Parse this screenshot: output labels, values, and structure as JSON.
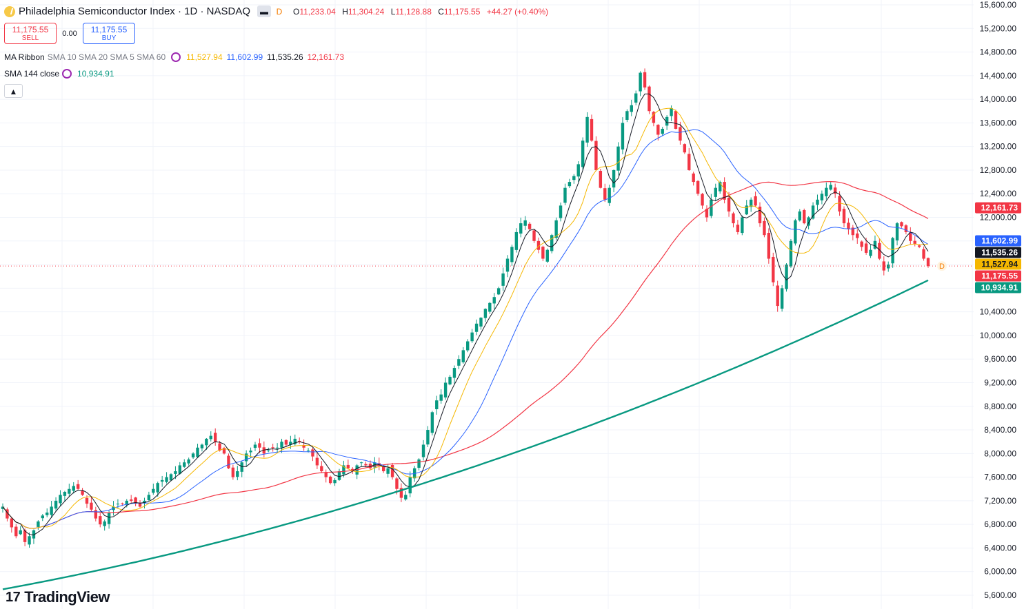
{
  "header": {
    "title": "Philadelphia Semiconductor Index · 1D · NASDAQ",
    "interval_button": "D",
    "ohlc": [
      {
        "k": "O",
        "v": "11,233.04"
      },
      {
        "k": "H",
        "v": "11,304.24"
      },
      {
        "k": "L",
        "v": "11,128.88"
      },
      {
        "k": "C",
        "v": "11,175.55"
      }
    ],
    "change": "+44.27 (+0.40%)"
  },
  "trade": {
    "sell_price": "11,175.55",
    "sell_label": "SELL",
    "spread": "0.00",
    "buy_price": "11,175.55",
    "buy_label": "BUY"
  },
  "indicators": {
    "ribbon": {
      "name": "MA Ribbon",
      "params": "SMA 10 SMA 20 SMA 5 SMA 60",
      "values": [
        {
          "v": "11,527.94",
          "color": "#f5b700"
        },
        {
          "v": "11,602.99",
          "color": "#2962ff"
        },
        {
          "v": "11,535.26",
          "color": "#131722"
        },
        {
          "v": "12,161.73",
          "color": "#f23645"
        }
      ]
    },
    "sma144": {
      "name": "SMA 144 close",
      "value": "10,934.91",
      "color": "#089981"
    }
  },
  "collapse_icon": "chevron-up-icon",
  "logo": {
    "text": "TradingView",
    "icon": "tradingview-logo-icon"
  },
  "chart_data": {
    "type": "candlestick",
    "title": "Philadelphia Semiconductor Index · 1D · NASDAQ",
    "ylim": [
      5400,
      15700
    ],
    "y_ticks": [
      5600,
      6000,
      6400,
      6800,
      7200,
      7600,
      8000,
      8400,
      8800,
      9200,
      9600,
      10000,
      10400,
      10800,
      11200,
      11600,
      12000,
      12400,
      12800,
      13200,
      13600,
      14000,
      14400,
      14800,
      15200,
      15600
    ],
    "y_tick_labels": [
      "5,600.00",
      "6,000.00",
      "6,400.00",
      "6,800.00",
      "7,200.00",
      "7,600.00",
      "8,000.00",
      "8,400.00",
      "8,800.00",
      "9,200.00",
      "9,600.00",
      "10,000.00",
      "10,400.00",
      "10,800.00",
      "11,200.00",
      "11,600.00",
      "12,000.00",
      "12,400.00",
      "12,800.00",
      "13,200.00",
      "13,600.00",
      "14,000.00",
      "14,400.00",
      "14,800.00",
      "15,200.00",
      "15,600.00"
    ],
    "colors": {
      "up": "#089981",
      "down": "#f23645",
      "sma5": "#131722",
      "sma10": "#f5b700",
      "sma20": "#2962ff",
      "sma60": "#f23645",
      "sma144": "#089981"
    },
    "closes": [
      7100,
      6900,
      6750,
      6600,
      6700,
      6500,
      6600,
      6700,
      6850,
      6950,
      7000,
      7100,
      7200,
      7300,
      7350,
      7400,
      7450,
      7400,
      7300,
      7150,
      7050,
      6900,
      6800,
      6850,
      7000,
      7100,
      7150,
      7150,
      7200,
      7200,
      7150,
      7100,
      7200,
      7300,
      7400,
      7500,
      7550,
      7600,
      7650,
      7700,
      7800,
      7850,
      7900,
      8000,
      8100,
      8150,
      8250,
      8300,
      8200,
      8050,
      8000,
      7750,
      7600,
      7700,
      7850,
      8000,
      8050,
      8150,
      8100,
      8000,
      8050,
      8100,
      8100,
      8200,
      8150,
      8200,
      8250,
      8200,
      8100,
      8050,
      7950,
      7800,
      7700,
      7600,
      7500,
      7550,
      7700,
      7800,
      7750,
      7700,
      7800,
      7850,
      7800,
      7750,
      7850,
      7800,
      7700,
      7750,
      7600,
      7400,
      7250,
      7300,
      7600,
      7750,
      7900,
      8150,
      8400,
      8700,
      8900,
      9000,
      9200,
      9300,
      9450,
      9600,
      9750,
      9900,
      10050,
      10200,
      10300,
      10450,
      10550,
      10650,
      10800,
      11050,
      11300,
      11500,
      11750,
      11900,
      11950,
      11800,
      11600,
      11450,
      11300,
      11450,
      11700,
      11950,
      12200,
      12500,
      12600,
      12700,
      12900,
      13300,
      13700,
      13300,
      12800,
      12500,
      12300,
      12500,
      12800,
      13200,
      13600,
      13800,
      13900,
      14100,
      14450,
      14200,
      13800,
      13600,
      13400,
      13500,
      13700,
      13850,
      13500,
      13300,
      13100,
      12800,
      12600,
      12400,
      12200,
      12000,
      12300,
      12500,
      12600,
      12300,
      12100,
      11900,
      11750,
      12000,
      12200,
      12300,
      12200,
      11900,
      11700,
      11300,
      10900,
      10500,
      10800,
      11200,
      11600,
      11950,
      12100,
      11900,
      12000,
      12200,
      12300,
      12400,
      12500,
      12550,
      12400,
      12100,
      11900,
      11800,
      11700,
      11650,
      11500,
      11400,
      11450,
      11600,
      11300,
      11100,
      11200,
      11650,
      11900,
      11850,
      11750,
      11600,
      11550,
      11500,
      11300,
      11175.55
    ],
    "last_close": 11175.55,
    "ma_last": {
      "sma10": 11527.94,
      "sma20": 11602.99,
      "sma5": 11535.26,
      "sma60": 12161.73,
      "sma144": 10934.91
    },
    "price_labels": [
      {
        "text": "12,161.73",
        "value": 12161.73,
        "color": "#f23645"
      },
      {
        "text": "11,602.99",
        "value": 11602.99,
        "color": "#2962ff"
      },
      {
        "text": "11,535.26",
        "value": 11535.26,
        "color": "#131722"
      },
      {
        "text": "11,527.94",
        "value": 11527.94,
        "color": "#f5b700"
      },
      {
        "text": "11,175.55",
        "value": 11175.55,
        "color": "#f23645"
      },
      {
        "text": "10,934.91",
        "value": 10934.91,
        "color": "#089981"
      }
    ],
    "dividend_marker": "D",
    "grid": true
  }
}
